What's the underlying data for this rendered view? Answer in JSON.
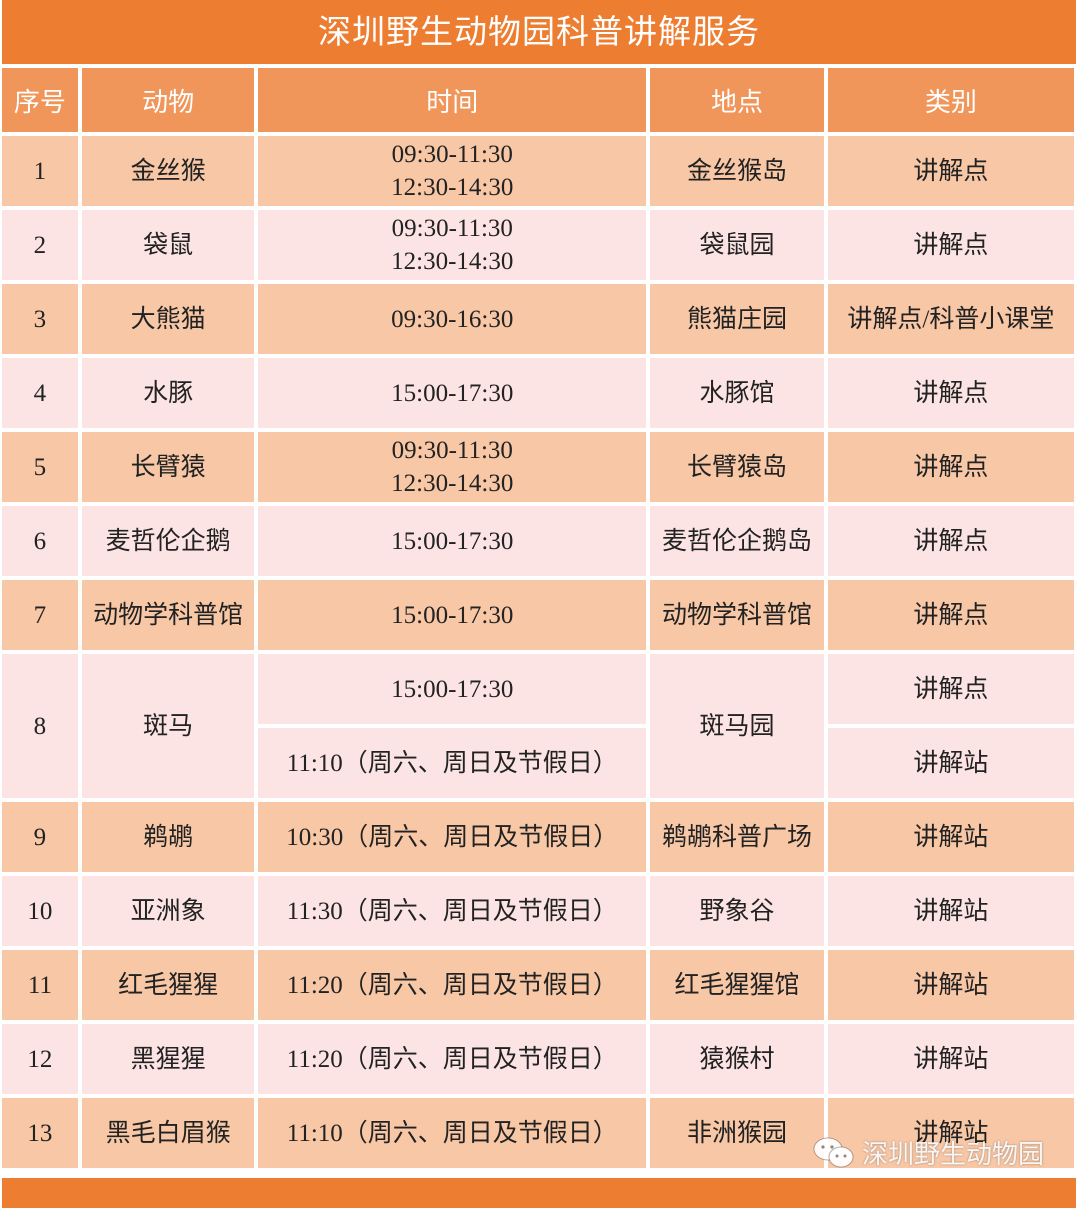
{
  "title": "深圳野生动物园科普讲解服务",
  "headers": [
    "序号",
    "动物",
    "时间",
    "地点",
    "类别"
  ],
  "rows": [
    {
      "no": "1",
      "animal": "金丝猴",
      "time": [
        "09:30-11:30",
        "12:30-14:30"
      ],
      "place": "金丝猴岛",
      "type": "讲解点"
    },
    {
      "no": "2",
      "animal": "袋鼠",
      "time": [
        "09:30-11:30",
        "12:30-14:30"
      ],
      "place": "袋鼠园",
      "type": "讲解点"
    },
    {
      "no": "3",
      "animal": "大熊猫",
      "time": [
        "09:30-16:30"
      ],
      "place": "熊猫庄园",
      "type": "讲解点/科普小课堂"
    },
    {
      "no": "4",
      "animal": "水豚",
      "time": [
        "15:00-17:30"
      ],
      "place": "水豚馆",
      "type": "讲解点"
    },
    {
      "no": "5",
      "animal": "长臂猿",
      "time": [
        "09:30-11:30",
        "12:30-14:30"
      ],
      "place": "长臂猿岛",
      "type": "讲解点"
    },
    {
      "no": "6",
      "animal": "麦哲伦企鹅",
      "time": [
        "15:00-17:30"
      ],
      "place": "麦哲伦企鹅岛",
      "type": "讲解点"
    },
    {
      "no": "7",
      "animal": "动物学科普馆",
      "time": [
        "15:00-17:30"
      ],
      "place": "动物学科普馆",
      "type": "讲解点"
    },
    {
      "no": "8",
      "animal": "斑马",
      "time": [
        "15:00-17:30",
        "11:10（周六、周日及节假日）"
      ],
      "place": "斑马园",
      "type": [
        "讲解点",
        "讲解站"
      ]
    },
    {
      "no": "9",
      "animal": "鹈鹕",
      "time": [
        "10:30（周六、周日及节假日）"
      ],
      "place": "鹈鹕科普广场",
      "type": "讲解站"
    },
    {
      "no": "10",
      "animal": "亚洲象",
      "time": [
        "11:30（周六、周日及节假日）"
      ],
      "place": "野象谷",
      "type": "讲解站"
    },
    {
      "no": "11",
      "animal": "红毛猩猩",
      "time": [
        "11:20（周六、周日及节假日）"
      ],
      "place": "红毛猩猩馆",
      "type": "讲解站"
    },
    {
      "no": "12",
      "animal": "黑猩猩",
      "time": [
        "11:20（周六、周日及节假日）"
      ],
      "place": "猿猴村",
      "type": "讲解站"
    },
    {
      "no": "13",
      "animal": "黑毛白眉猴",
      "time": [
        "11:10（周六、周日及节假日）"
      ],
      "place": "非洲猴园",
      "type": "讲解站"
    }
  ],
  "watermark": {
    "icon": "wechat-icon",
    "text": "深圳野生动物园"
  },
  "colors": {
    "title": "#ED7D31",
    "header": "#F0965A",
    "row_odd": "#F7C7A6",
    "row_even": "#FDE4E4"
  }
}
